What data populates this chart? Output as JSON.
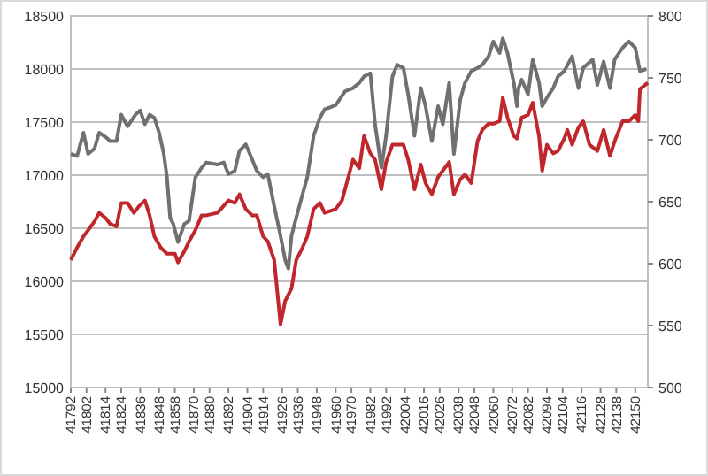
{
  "chart_data": {
    "type": "line",
    "xlim": [
      41792,
      42158
    ],
    "xticks": [
      41792,
      41802,
      41814,
      41824,
      41836,
      41848,
      41858,
      41870,
      41880,
      41892,
      41904,
      41914,
      41926,
      41936,
      41948,
      41960,
      41970,
      41982,
      41992,
      42004,
      42016,
      42026,
      42038,
      42048,
      42060,
      42072,
      42082,
      42094,
      42104,
      42116,
      42128,
      42138,
      42150
    ],
    "ylim": [
      15000,
      18500
    ],
    "yticks": [
      15000,
      15500,
      16000,
      16500,
      17000,
      17500,
      18000,
      18500
    ],
    "y2lim": [
      500,
      800
    ],
    "y2ticks": [
      500,
      550,
      600,
      650,
      700,
      750,
      800
    ],
    "grid": "y",
    "series": [
      {
        "color": "#707070",
        "x": [
          41792,
          41796,
          41800,
          41803,
          41807,
          41810,
          41814,
          41817,
          41821,
          41824,
          41828,
          41833,
          41836,
          41839,
          41842,
          41845,
          41848,
          41851,
          41853,
          41855,
          41857,
          41860,
          41864,
          41867,
          41871,
          41875,
          41878,
          41885,
          41889,
          41892,
          41896,
          41899,
          41903,
          41907,
          41910,
          41914,
          41917,
          41921,
          41925,
          41928,
          41930,
          41932,
          41935,
          41939,
          41942,
          41946,
          41950,
          41953,
          41960,
          41966,
          41971,
          41975,
          41978,
          41982,
          41985,
          41989,
          41992,
          41996,
          41999,
          42003,
          42006,
          42010,
          42014,
          42017,
          42021,
          42025,
          42028,
          42032,
          42035,
          42039,
          42042,
          42046,
          42050,
          42053,
          42057,
          42060,
          42064,
          42066,
          42069,
          42073,
          42075,
          42076,
          42078,
          42082,
          42085,
          42089,
          42091,
          42094,
          42098,
          42101,
          42105,
          42110,
          42114,
          42117,
          42123,
          42126,
          42130,
          42134,
          42137,
          42142,
          42146,
          42150,
          42153,
          42157
        ],
        "values": [
          17200,
          17180,
          17400,
          17200,
          17250,
          17400,
          17360,
          17320,
          17320,
          17570,
          17460,
          17570,
          17610,
          17480,
          17570,
          17540,
          17400,
          17200,
          16980,
          16600,
          16540,
          16370,
          16540,
          16570,
          16980,
          17070,
          17120,
          17100,
          17120,
          17010,
          17040,
          17230,
          17290,
          17150,
          17040,
          16980,
          17010,
          16710,
          16430,
          16200,
          16120,
          16430,
          16600,
          16820,
          16980,
          17370,
          17540,
          17620,
          17660,
          17790,
          17820,
          17870,
          17930,
          17960,
          17480,
          17070,
          17370,
          17930,
          18040,
          18010,
          17760,
          17370,
          17820,
          17650,
          17320,
          17650,
          17480,
          17870,
          17200,
          17710,
          17870,
          17980,
          18010,
          18040,
          18120,
          18260,
          18150,
          18290,
          18150,
          17870,
          17650,
          17820,
          17900,
          17760,
          18090,
          17870,
          17650,
          17730,
          17820,
          17930,
          17980,
          18120,
          17820,
          18010,
          18090,
          17850,
          18070,
          17820,
          18090,
          18200,
          18260,
          18200,
          17980,
          18000
        ]
      },
      {
        "color": "#c0272d",
        "axis": "y2",
        "x": [
          41792,
          41796,
          41800,
          41803,
          41807,
          41810,
          41814,
          41817,
          41821,
          41824,
          41828,
          41832,
          41835,
          41839,
          41842,
          41845,
          41849,
          41853,
          41858,
          41860,
          41864,
          41867,
          41871,
          41875,
          41878,
          41885,
          41892,
          41896,
          41899,
          41903,
          41907,
          41910,
          41914,
          41917,
          41921,
          41925,
          41928,
          41932,
          41935,
          41939,
          41942,
          41946,
          41950,
          41953,
          41960,
          41964,
          41967,
          41971,
          41975,
          41978,
          41982,
          41985,
          41989,
          41992,
          41996,
          42003,
          42006,
          42010,
          42014,
          42017,
          42021,
          42025,
          42032,
          42035,
          42039,
          42042,
          42046,
          42050,
          42053,
          42057,
          42060,
          42064,
          42066,
          42069,
          42073,
          42075,
          42078,
          42082,
          42085,
          42089,
          42091,
          42094,
          42098,
          42101,
          42105,
          42107,
          42110,
          42114,
          42117,
          42121,
          42123,
          42126,
          42130,
          42134,
          42137,
          42142,
          42146,
          42150,
          42152,
          42153,
          42158
        ],
        "values": [
          603,
          613,
          622,
          627,
          634,
          641,
          637,
          632,
          630,
          649,
          649,
          641,
          646,
          651,
          639,
          622,
          613,
          608,
          608,
          601,
          610,
          618,
          627,
          639,
          639,
          641,
          651,
          649,
          656,
          644,
          639,
          639,
          622,
          618,
          603,
          551,
          570,
          580,
          603,
          613,
          622,
          644,
          649,
          641,
          644,
          651,
          665,
          684,
          677,
          703,
          689,
          684,
          660,
          682,
          696,
          696,
          684,
          660,
          680,
          665,
          656,
          670,
          682,
          656,
          668,
          672,
          665,
          699,
          708,
          713,
          713,
          715,
          734,
          718,
          703,
          701,
          718,
          720,
          730,
          703,
          675,
          696,
          689,
          691,
          701,
          708,
          696,
          710,
          715,
          696,
          694,
          691,
          708,
          687,
          699,
          715,
          715,
          720,
          715,
          741,
          746
        ]
      }
    ]
  }
}
